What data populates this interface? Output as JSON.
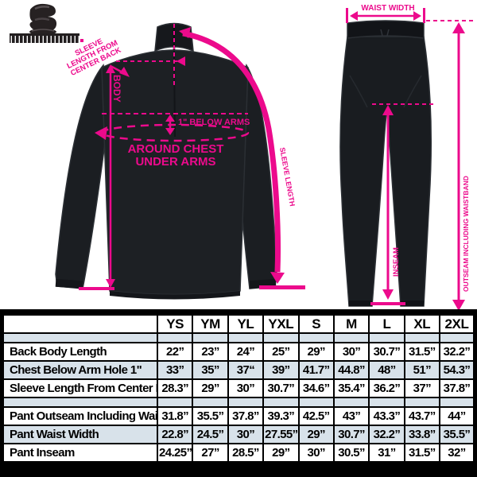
{
  "colors": {
    "accent": "#EC0A8C",
    "row_alt": "#D8E2EA",
    "garment": "#1B1E22",
    "table_border": "#000000"
  },
  "diagram": {
    "jacket": {
      "note_lines": [
        "SLEEVE",
        "LENGTH FROM",
        "CENTER BACK"
      ],
      "body_label": "BODY",
      "below_arms_label": "1\" BELOW ARMS",
      "around_chest_lines": [
        "AROUND CHEST",
        "UNDER ARMS"
      ],
      "sleeve_line_label": "SLEEVE LENGTH"
    },
    "pants": {
      "waist_label": "WAIST WIDTH",
      "outseam_label": "OUTSEAM INCLUDING WAISTBAND",
      "inseam_label": "INSEAM"
    }
  },
  "table": {
    "sizes": [
      "YS",
      "YM",
      "YL",
      "YXL",
      "S",
      "M",
      "L",
      "XL",
      "2XL"
    ],
    "groups": [
      {
        "rows": [
          {
            "label": "Back Body Length",
            "values": [
              "22”",
              "23”",
              "24”",
              "25”",
              "29”",
              "30”",
              "30.7”",
              "31.5”",
              "32.2”"
            ]
          },
          {
            "label": "Chest Below Arm Hole 1\"",
            "values": [
              "33”",
              "35”",
              "37“",
              "39”",
              "41.7”",
              "44.8”",
              "48”",
              "51”",
              "54.3”"
            ]
          },
          {
            "label": "Sleeve Length From Center Back",
            "values": [
              "28.3”",
              "29”",
              "30”",
              "30.7”",
              "34.6”",
              "35.4”",
              "36.2”",
              "37”",
              "37.8”"
            ]
          }
        ]
      },
      {
        "rows": [
          {
            "label": "Pant Outseam Including Waist",
            "values": [
              "31.8”",
              "35.5”",
              "37.8”",
              "39.3”",
              "42.5”",
              "43”",
              "43.3”",
              "43.7”",
              "44”"
            ]
          },
          {
            "label": "Pant Waist Width",
            "values": [
              "22.8”",
              "24.5”",
              "30”",
              "27.55”",
              "29”",
              "30.7”",
              "32.2”",
              "33.8”",
              "35.5”"
            ]
          },
          {
            "label": "Pant Inseam",
            "values": [
              "24.25”",
              "27”",
              "28.5”",
              "29”",
              "30”",
              "30.5”",
              "31”",
              "31.5”",
              "32”"
            ]
          }
        ]
      }
    ]
  },
  "chart_data": {
    "type": "table",
    "columns": [
      "",
      "YS",
      "YM",
      "YL",
      "YXL",
      "S",
      "M",
      "L",
      "XL",
      "2XL"
    ],
    "rows": [
      [
        "Back Body Length",
        "22”",
        "23”",
        "24”",
        "25”",
        "29”",
        "30”",
        "30.7”",
        "31.5”",
        "32.2”"
      ],
      [
        "Chest Below Arm Hole 1\"",
        "33”",
        "35”",
        "37“",
        "39”",
        "41.7”",
        "44.8”",
        "48”",
        "51”",
        "54.3”"
      ],
      [
        "Sleeve Length From Center Back",
        "28.3”",
        "29”",
        "30”",
        "30.7”",
        "34.6”",
        "35.4”",
        "36.2”",
        "37”",
        "37.8”"
      ],
      [
        "Pant Outseam Including Waist",
        "31.8”",
        "35.5”",
        "37.8”",
        "39.3”",
        "42.5”",
        "43”",
        "43.3”",
        "43.7”",
        "44”"
      ],
      [
        "Pant Waist Width",
        "22.8”",
        "24.5”",
        "30”",
        "27.55”",
        "29”",
        "30.7”",
        "32.2”",
        "33.8”",
        "35.5”"
      ],
      [
        "Pant Inseam",
        "24.25”",
        "27”",
        "28.5”",
        "29”",
        "30”",
        "30.5”",
        "31”",
        "31.5”",
        "32”"
      ]
    ]
  }
}
